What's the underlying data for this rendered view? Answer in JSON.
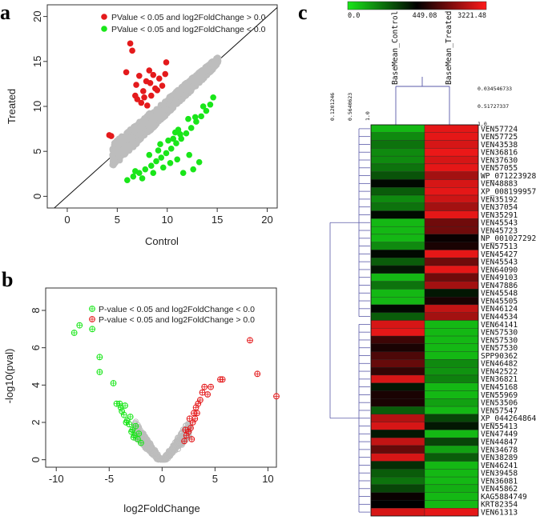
{
  "panels": {
    "a": "a",
    "b": "b",
    "c": "c"
  },
  "chart_data": [
    {
      "type": "scatter",
      "panel": "a",
      "xlabel": "Control",
      "ylabel": "Treated",
      "xlim": [
        -2,
        21
      ],
      "ylim": [
        -1.3,
        21.3
      ],
      "x_ticks": [
        0,
        5,
        10,
        15,
        20
      ],
      "y_ticks": [
        0,
        5,
        10,
        15,
        20
      ],
      "diagonal": true,
      "colors": {
        "up": "#e41a1c",
        "down": "#19e619",
        "ns": "#bdbdbd"
      },
      "series": [
        {
          "name": "PValue < 0.05 and log2FoldChange > 0.0",
          "color": "#e41a1c",
          "points": [
            [
              4.2,
              6.8
            ],
            [
              4.4,
              6.7
            ],
            [
              5.9,
              13.8
            ],
            [
              6.3,
              17.0
            ],
            [
              6.5,
              16.2
            ],
            [
              6.9,
              12.4
            ],
            [
              7.2,
              13.4
            ],
            [
              7.6,
              11.7
            ],
            [
              7.9,
              12.8
            ],
            [
              8.2,
              14.0
            ],
            [
              8.4,
              11.2
            ],
            [
              8.6,
              13.5
            ],
            [
              9.0,
              11.8
            ],
            [
              9.2,
              13.1
            ],
            [
              9.5,
              12.3
            ],
            [
              7.0,
              10.8
            ],
            [
              7.4,
              10.4
            ],
            [
              8.0,
              10.1
            ],
            [
              8.8,
              12.0
            ],
            [
              6.8,
              11.2
            ],
            [
              9.8,
              13.6
            ],
            [
              9.9,
              14.9
            ],
            [
              8.3,
              12.6
            ],
            [
              7.7,
              11.0
            ]
          ]
        },
        {
          "name": "PValue < 0.05 and log2FoldChange < 0.0",
          "color": "#19e619",
          "points": [
            [
              6.0,
              1.8
            ],
            [
              6.6,
              2.2
            ],
            [
              7.2,
              2.6
            ],
            [
              7.8,
              3.0
            ],
            [
              8.4,
              3.4
            ],
            [
              8.9,
              3.9
            ],
            [
              9.4,
              4.3
            ],
            [
              9.9,
              4.8
            ],
            [
              10.4,
              5.3
            ],
            [
              10.9,
              5.9
            ],
            [
              11.4,
              6.4
            ],
            [
              11.9,
              7.0
            ],
            [
              12.4,
              7.6
            ],
            [
              12.9,
              8.3
            ],
            [
              13.4,
              8.9
            ],
            [
              13.9,
              9.5
            ],
            [
              14.3,
              10.2
            ],
            [
              14.6,
              11.0
            ],
            [
              8.2,
              4.6
            ],
            [
              9.1,
              5.1
            ],
            [
              10.1,
              6.2
            ],
            [
              11.1,
              7.4
            ],
            [
              12.1,
              8.6
            ],
            [
              12.8,
              8.8
            ],
            [
              9.6,
              3.2
            ],
            [
              10.3,
              3.7
            ],
            [
              11.6,
              2.6
            ],
            [
              12.6,
              3.0
            ],
            [
              13.2,
              3.8
            ],
            [
              10.6,
              6.4
            ],
            [
              11.3,
              6.9
            ],
            [
              8.6,
              2.6
            ],
            [
              7.5,
              2.0
            ],
            [
              9.3,
              5.8
            ],
            [
              10.8,
              7.1
            ],
            [
              13.6,
              10.0
            ],
            [
              12.2,
              4.6
            ],
            [
              11.0,
              4.1
            ],
            [
              6.8,
              2.8
            ]
          ]
        }
      ]
    },
    {
      "type": "scatter",
      "panel": "b",
      "xlabel": "log2FoldChange",
      "ylabel": "-log10(pval)",
      "xlim": [
        -11,
        10.8
      ],
      "ylim": [
        -0.4,
        9.2
      ],
      "x_ticks": [
        -10,
        -5,
        0,
        5,
        10
      ],
      "y_ticks": [
        0,
        2,
        4,
        6,
        8
      ],
      "colors": {
        "up": "#e41a1c",
        "down": "#19e619",
        "ns": "#bdbdbd"
      },
      "series": [
        {
          "name": "P-value < 0.05 and log2FoldChange < 0.0",
          "color": "#19e619",
          "points": [
            [
              -8.3,
              6.8
            ],
            [
              -7.8,
              7.2
            ],
            [
              -6.6,
              7.0
            ],
            [
              -5.9,
              5.5
            ],
            [
              -5.9,
              4.7
            ],
            [
              -4.6,
              4.1
            ],
            [
              -4.3,
              3.0
            ],
            [
              -4.0,
              3.0
            ],
            [
              -3.8,
              2.6
            ],
            [
              -3.6,
              2.4
            ],
            [
              -3.5,
              2.9
            ],
            [
              -3.3,
              2.1
            ],
            [
              -3.1,
              1.9
            ],
            [
              -3.0,
              2.3
            ],
            [
              -2.8,
              1.6
            ],
            [
              -2.6,
              1.3
            ],
            [
              -2.5,
              1.8
            ],
            [
              -2.3,
              1.1
            ],
            [
              -2.2,
              1.4
            ],
            [
              -2.0,
              0.9
            ],
            [
              -3.9,
              2.8
            ],
            [
              -3.4,
              2.0
            ],
            [
              -2.9,
              1.5
            ],
            [
              -2.7,
              1.2
            ]
          ]
        },
        {
          "name": "P-value < 0.05 and log2FoldChange > 0.0",
          "color": "#e41a1c",
          "points": [
            [
              2.1,
              1.0
            ],
            [
              2.3,
              1.3
            ],
            [
              2.5,
              1.5
            ],
            [
              2.7,
              1.7
            ],
            [
              2.9,
              2.0
            ],
            [
              3.0,
              2.5
            ],
            [
              3.2,
              2.8
            ],
            [
              3.4,
              3.0
            ],
            [
              3.6,
              3.2
            ],
            [
              3.8,
              3.6
            ],
            [
              4.0,
              3.9
            ],
            [
              4.3,
              3.5
            ],
            [
              4.6,
              3.9
            ],
            [
              5.5,
              4.3
            ],
            [
              5.7,
              4.3
            ],
            [
              8.3,
              6.4
            ],
            [
              9.0,
              4.6
            ],
            [
              10.8,
              3.4
            ],
            [
              2.2,
              1.6
            ],
            [
              2.6,
              2.2
            ],
            [
              3.1,
              2.2
            ],
            [
              3.3,
              2.5
            ],
            [
              2.8,
              1.1
            ]
          ]
        }
      ]
    },
    {
      "type": "heatmap",
      "panel": "c",
      "columns": [
        "BaseMean_Control",
        "BaseMean_Treated"
      ],
      "colorbar": {
        "min": "0.0",
        "mid": "449.08",
        "max": "3221.48"
      },
      "dendrogram_ticks": {
        "left": [
          "0.1201246",
          "0.5640623",
          "1.0"
        ],
        "top": [
          "0.034546733",
          "0.51727337",
          "1.0"
        ]
      },
      "scale_colors": {
        "low": "#19e619",
        "mid": "#000000",
        "high": "#ff1a1a"
      },
      "rows": [
        {
          "gene": "VEN57724",
          "control": 0.1,
          "treated": 0.95
        },
        {
          "gene": "VEN57725",
          "control": 0.2,
          "treated": 0.95
        },
        {
          "gene": "VEN43538",
          "control": 0.25,
          "treated": 0.92
        },
        {
          "gene": "VEN36816",
          "control": 0.2,
          "treated": 0.96
        },
        {
          "gene": "VEN37630",
          "control": 0.2,
          "treated": 0.92
        },
        {
          "gene": "VEN57055",
          "control": 0.25,
          "treated": 0.95
        },
        {
          "gene": "WP_071223928",
          "control": 0.32,
          "treated": 0.82
        },
        {
          "gene": "VEN48883",
          "control": 0.48,
          "treated": 0.92
        },
        {
          "gene": "XP_008199957",
          "control": 0.3,
          "treated": 0.95
        },
        {
          "gene": "VEN35192",
          "control": 0.2,
          "treated": 0.9
        },
        {
          "gene": "VEN37054",
          "control": 0.25,
          "treated": 0.82
        },
        {
          "gene": "VEN35291",
          "control": 0.48,
          "treated": 0.95
        },
        {
          "gene": "VEN45543",
          "control": 0.1,
          "treated": 0.72
        },
        {
          "gene": "VEN45723",
          "control": 0.1,
          "treated": 0.72
        },
        {
          "gene": "NP_001027292",
          "control": 0.1,
          "treated": 0.52
        },
        {
          "gene": "VEN57513",
          "control": 0.2,
          "treated": 0.55
        },
        {
          "gene": "VEN45427",
          "control": 0.48,
          "treated": 0.95
        },
        {
          "gene": "VEN45543",
          "control": 0.3,
          "treated": 0.72
        },
        {
          "gene": "VEN64090",
          "control": 0.45,
          "treated": 0.95
        },
        {
          "gene": "VEN49103",
          "control": 0.1,
          "treated": 0.72
        },
        {
          "gene": "VEN47886",
          "control": 0.25,
          "treated": 0.82
        },
        {
          "gene": "VEN45548",
          "control": 0.1,
          "treated": 0.45
        },
        {
          "gene": "VEN45505",
          "control": 0.1,
          "treated": 0.55
        },
        {
          "gene": "VEN46124",
          "control": 0.48,
          "treated": 0.88
        },
        {
          "gene": "VEN44534",
          "control": 0.3,
          "treated": 0.82
        },
        {
          "gene": "VEN64141",
          "control": 0.92,
          "treated": 0.1
        },
        {
          "gene": "VEN57530",
          "control": 0.95,
          "treated": 0.1
        },
        {
          "gene": "VEN57530",
          "control": 0.62,
          "treated": 0.1
        },
        {
          "gene": "VEN57530",
          "control": 0.55,
          "treated": 0.1
        },
        {
          "gene": "SPP90362",
          "control": 0.65,
          "treated": 0.1
        },
        {
          "gene": "VEN46482",
          "control": 0.7,
          "treated": 0.2
        },
        {
          "gene": "VEN42522",
          "control": 0.6,
          "treated": 0.18
        },
        {
          "gene": "VEN36821",
          "control": 0.92,
          "treated": 0.22
        },
        {
          "gene": "VEN45168",
          "control": 0.45,
          "treated": 0.1
        },
        {
          "gene": "VEN55969",
          "control": 0.55,
          "treated": 0.1
        },
        {
          "gene": "VEN53506",
          "control": 0.55,
          "treated": 0.15
        },
        {
          "gene": "VEN57547",
          "control": 0.3,
          "treated": 0.1
        },
        {
          "gene": "XP_044264864",
          "control": 0.85,
          "treated": 0.35
        },
        {
          "gene": "VEN55413",
          "control": 0.92,
          "treated": 0.45
        },
        {
          "gene": "VEN47449",
          "control": 0.45,
          "treated": 0.1
        },
        {
          "gene": "VEN44847",
          "control": 0.88,
          "treated": 0.35
        },
        {
          "gene": "VEN34678",
          "control": 0.7,
          "treated": 0.15
        },
        {
          "gene": "VEN38289",
          "control": 0.92,
          "treated": 0.3
        },
        {
          "gene": "VEN46241",
          "control": 0.4,
          "treated": 0.1
        },
        {
          "gene": "VEN39458",
          "control": 0.3,
          "treated": 0.1
        },
        {
          "gene": "VEN36081",
          "control": 0.25,
          "treated": 0.1
        },
        {
          "gene": "VEN45862",
          "control": 0.35,
          "treated": 0.12
        },
        {
          "gene": "KAG5884749",
          "control": 0.52,
          "treated": 0.1
        },
        {
          "gene": "KRT82354",
          "control": 0.5,
          "treated": 0.1
        },
        {
          "gene": "VEN61313",
          "control": 0.92,
          "treated": 0.95
        }
      ]
    }
  ]
}
